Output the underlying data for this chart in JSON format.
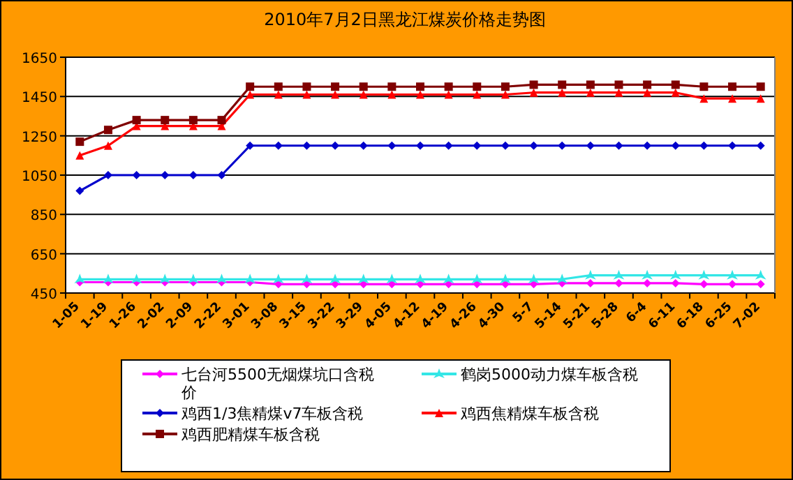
{
  "chart_data": {
    "type": "line",
    "title": "2010年7月2日黑龙江煤炭价格走势图",
    "categories": [
      "1-05",
      "1-19",
      "1-26",
      "2-02",
      "2-09",
      "2-22",
      "3-01",
      "3-08",
      "3-15",
      "3-22",
      "3-29",
      "4-05",
      "4-12",
      "4-19",
      "4-26",
      "4-30",
      "5-7",
      "5-14",
      "5-21",
      "5-28",
      "6-4",
      "6-11",
      "6-18",
      "6-25",
      "7-02"
    ],
    "series": [
      {
        "name": "七台河5500无烟煤坑口含税价",
        "color": "#ff00ff",
        "marker": "diamond",
        "values": [
          505,
          505,
          505,
          505,
          505,
          505,
          505,
          495,
          495,
          495,
          495,
          495,
          495,
          495,
          495,
          495,
          495,
          500,
          500,
          500,
          500,
          500,
          495,
          495,
          495
        ]
      },
      {
        "name": "鹤岗5000动力煤车板含税",
        "color": "#33e6e6",
        "marker": "star",
        "values": [
          520,
          520,
          520,
          520,
          520,
          520,
          520,
          520,
          520,
          520,
          520,
          520,
          520,
          520,
          520,
          520,
          520,
          520,
          540,
          540,
          540,
          540,
          540,
          540,
          540
        ]
      },
      {
        "name": "鸡西1/3焦精煤v7车板含税",
        "color": "#0000cc",
        "marker": "diamond",
        "values": [
          970,
          1050,
          1050,
          1050,
          1050,
          1050,
          1200,
          1200,
          1200,
          1200,
          1200,
          1200,
          1200,
          1200,
          1200,
          1200,
          1200,
          1200,
          1200,
          1200,
          1200,
          1200,
          1200,
          1200,
          1200
        ]
      },
      {
        "name": "鸡西焦精煤车板含税",
        "color": "#ff0000",
        "marker": "triangle",
        "values": [
          1150,
          1200,
          1300,
          1300,
          1300,
          1300,
          1460,
          1460,
          1460,
          1460,
          1460,
          1460,
          1460,
          1460,
          1460,
          1460,
          1470,
          1470,
          1470,
          1470,
          1470,
          1470,
          1440,
          1440,
          1440
        ]
      },
      {
        "name": "鸡西肥精煤车板含税",
        "color": "#800000",
        "marker": "square",
        "values": [
          1220,
          1280,
          1330,
          1330,
          1330,
          1330,
          1500,
          1500,
          1500,
          1500,
          1500,
          1500,
          1500,
          1500,
          1500,
          1500,
          1510,
          1510,
          1510,
          1510,
          1510,
          1510,
          1500,
          1500,
          1500
        ]
      }
    ],
    "ylim": [
      450,
      1650
    ],
    "yticks": [
      450,
      650,
      850,
      1050,
      1250,
      1450,
      1650
    ],
    "grid": "y",
    "legend": "bottom",
    "line_style": "solid"
  }
}
